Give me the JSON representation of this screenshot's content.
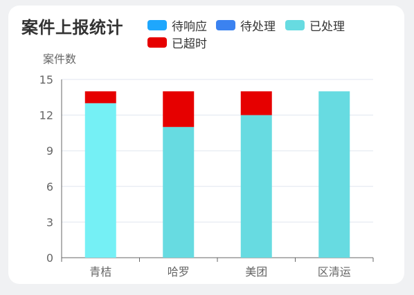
{
  "chart_data": {
    "type": "bar",
    "stacked": true,
    "title": "案件上报统计",
    "ylabel": "案件数",
    "xlabel": "",
    "categories": [
      "青桔",
      "哈罗",
      "美团",
      "区清运"
    ],
    "ylim": [
      0,
      15
    ],
    "yticks": [
      0,
      3,
      6,
      9,
      12,
      15
    ],
    "grid": true,
    "legend_position": "top-right",
    "series": [
      {
        "name": "待响应",
        "color": "#1ea7fd",
        "values": [
          0,
          0,
          0,
          0
        ]
      },
      {
        "name": "待处理",
        "color": "#3b82f0",
        "values": [
          0,
          0,
          0,
          0
        ]
      },
      {
        "name": "已处理",
        "color": "#67dbe1",
        "values": [
          13,
          11,
          12,
          14
        ]
      },
      {
        "name": "已超时",
        "color": "#e60000",
        "values": [
          1,
          3,
          2,
          0
        ]
      }
    ],
    "first_bar_color": "#75f0f5"
  }
}
